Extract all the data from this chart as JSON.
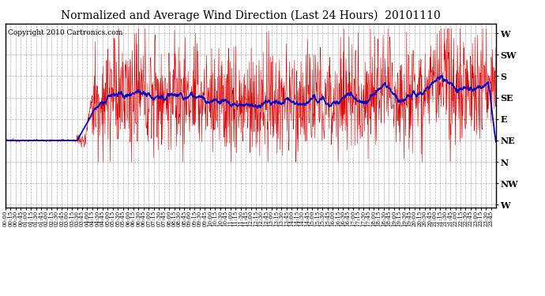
{
  "title": "Normalized and Average Wind Direction (Last 24 Hours)  20101110",
  "copyright": "Copyright 2010 Cartronics.com",
  "background_color": "#ffffff",
  "plot_bg_color": "#ffffff",
  "grid_color": "#999999",
  "ytick_labels": [
    "W",
    "SW",
    "S",
    "SE",
    "E",
    "NE",
    "N",
    "NW",
    "W"
  ],
  "ytick_values": [
    360,
    315,
    270,
    225,
    180,
    135,
    90,
    45,
    0
  ],
  "ylim": [
    -5,
    380
  ],
  "red_line_color": "#dd0000",
  "blue_line_color": "#0000cc",
  "title_fontsize": 10,
  "copyright_fontsize": 6.5
}
